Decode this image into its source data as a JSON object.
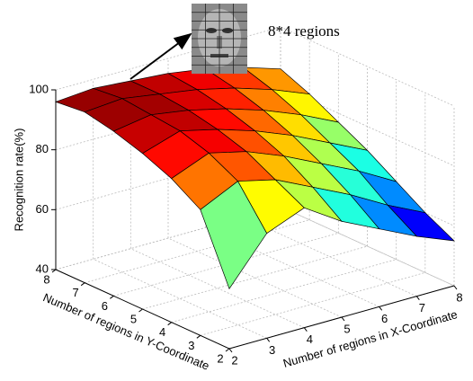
{
  "chart_data": {
    "type": "surface",
    "zlabel": "Recognition rate(%)",
    "xlabel": "Number of regions in X-Coordinate",
    "ylabel": "Number of regions in Y-Coordinate",
    "annotation": "8*4 regions",
    "x": [
      2,
      3,
      4,
      5,
      6,
      7,
      8
    ],
    "y": [
      2,
      3,
      4,
      5,
      6,
      7,
      8
    ],
    "z": [
      [
        60,
        75,
        80,
        72,
        66,
        60,
        55
      ],
      [
        82,
        88,
        85,
        79,
        73,
        66,
        60
      ],
      [
        88,
        93,
        90,
        85,
        79,
        73,
        66
      ],
      [
        92,
        96,
        93,
        89,
        84,
        78,
        72
      ],
      [
        95,
        97,
        95,
        92,
        88,
        83,
        77
      ],
      [
        97,
        98,
        96,
        94,
        91,
        87,
        82
      ],
      [
        96,
        97,
        96,
        95,
        93,
        90,
        86
      ]
    ],
    "colormap": "jet",
    "xlim": [
      2,
      8
    ],
    "ylim": [
      2,
      8
    ],
    "zlim": [
      40,
      100
    ],
    "xticks": [
      2,
      3,
      4,
      5,
      6,
      7,
      8
    ],
    "yticks": [
      2,
      3,
      4,
      5,
      6,
      7,
      8
    ],
    "zticks": [
      40,
      60,
      80,
      100
    ],
    "grid": true
  }
}
